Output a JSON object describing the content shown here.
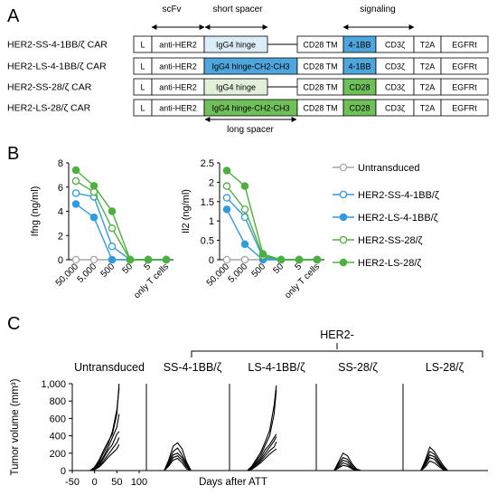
{
  "panels": {
    "a": {
      "letter": "A",
      "header": {
        "scfv": "scFv",
        "short_spacer": "short spacer",
        "signaling": "signaling",
        "long_spacer": "long spacer"
      },
      "constructs": [
        {
          "name": "HER2-SS-4-1BB/ζ CAR",
          "leader": "L",
          "binder": "anti-HER2",
          "spacer": "IgG4 hinge",
          "tm": "CD28 TM",
          "costim": "4-1BB",
          "cd3z": "CD3ζ",
          "t2a": "T2A",
          "egfrt": "EGFRt"
        },
        {
          "name": "HER2-LS-4-1BB/ζ CAR",
          "leader": "L",
          "binder": "anti-HER2",
          "spacer": "IgG4 hinge-CH2-CH3",
          "tm": "CD28 TM",
          "costim": "4-1BB",
          "cd3z": "CD3ζ",
          "t2a": "T2A",
          "egfrt": "EGFRt"
        },
        {
          "name": "HER2-SS-28/ζ CAR",
          "leader": "L",
          "binder": "anti-HER2",
          "spacer": "IgG4 hinge",
          "tm": "CD28 TM",
          "costim": "CD28",
          "cd3z": "CD3ζ",
          "t2a": "T2A",
          "egfrt": "EGFRt"
        },
        {
          "name": "HER2-LS-28/ζ CAR",
          "leader": "L",
          "binder": "anti-HER2",
          "spacer": "IgG4 hinge-CH2-CH3",
          "tm": "CD28 TM",
          "costim": "CD28",
          "cd3z": "CD3ζ",
          "t2a": "T2A",
          "egfrt": "EGFRt"
        }
      ],
      "colors": {
        "ss_4_1bb_spacer": "#dbeef8",
        "ls_4_1bb_spacer": "#4ea6dc",
        "ss_28_spacer": "#e2f0d9",
        "ls_28_spacer": "#70c05a",
        "costim_4_1bb": "#4ea6dc",
        "costim_28": "#70c05a"
      }
    },
    "b_letter": "B",
    "c_letter": "C"
  },
  "chart_data": [
    {
      "type": "line",
      "panel": "B-left",
      "ylabel": "Ifng (ng/ml)",
      "ylim": [
        0,
        8
      ],
      "yticks": [
        "0",
        "2",
        "4",
        "6",
        "8"
      ],
      "categories": [
        "50,000",
        "5,000",
        "500",
        "50",
        "5",
        "only T cells"
      ],
      "series": [
        {
          "name": "Untransduced",
          "color": "#a6a6a6",
          "marker": "open",
          "values": [
            0,
            0,
            0,
            0,
            0,
            0
          ]
        },
        {
          "name": "HER2-SS-4-1BB/ζ",
          "color": "#2f9be0",
          "marker": "open",
          "values": [
            5.5,
            5.2,
            1.1,
            0,
            0,
            0
          ]
        },
        {
          "name": "HER2-LS-4-1BB/ζ",
          "color": "#2f9be0",
          "marker": "filled",
          "values": [
            4.6,
            3.5,
            0,
            0,
            0,
            0
          ]
        },
        {
          "name": "HER2-SS-28/ζ",
          "color": "#4cb13c",
          "marker": "open",
          "values": [
            6.5,
            5.6,
            2.6,
            0,
            0,
            0
          ]
        },
        {
          "name": "HER2-LS-28/ζ",
          "color": "#4cb13c",
          "marker": "filled",
          "values": [
            7.4,
            6.1,
            4.0,
            0,
            0,
            0
          ]
        }
      ]
    },
    {
      "type": "line",
      "panel": "B-right",
      "ylabel": "Il2 (ng/ml)",
      "ylim": [
        0,
        2.5
      ],
      "yticks": [
        "0",
        "0.5",
        "1",
        "1.5",
        "2",
        "2.5"
      ],
      "categories": [
        "50,000",
        "5,000",
        "500",
        "50",
        "5",
        "only T cells"
      ],
      "series": [
        {
          "name": "Untransduced",
          "color": "#a6a6a6",
          "marker": "open",
          "values": [
            0,
            0,
            0,
            0,
            0,
            0
          ]
        },
        {
          "name": "HER2-SS-4-1BB/ζ",
          "color": "#2f9be0",
          "marker": "open",
          "values": [
            1.6,
            1.1,
            0.05,
            0,
            0,
            0
          ]
        },
        {
          "name": "HER2-LS-4-1BB/ζ",
          "color": "#2f9be0",
          "marker": "filled",
          "values": [
            1.3,
            0.4,
            0,
            0,
            0,
            0
          ]
        },
        {
          "name": "HER2-SS-28/ζ",
          "color": "#4cb13c",
          "marker": "open",
          "values": [
            1.9,
            1.3,
            0.1,
            0,
            0,
            0
          ]
        },
        {
          "name": "HER2-LS-28/ζ",
          "color": "#4cb13c",
          "marker": "filled",
          "values": [
            2.3,
            1.9,
            0.15,
            0,
            0,
            0
          ]
        }
      ]
    },
    {
      "type": "line",
      "panel": "C",
      "group_label": "HER2-",
      "ylabel": "Tumor volume (mm³)",
      "xlabel": "Days after ATT",
      "ylim": [
        0,
        1000
      ],
      "yticks": [
        "0",
        "200",
        "400",
        "600",
        "800",
        "1,000"
      ],
      "xlim": [
        -50,
        100
      ],
      "xticks": [
        "-50",
        "0",
        "50",
        "100"
      ],
      "groups": [
        {
          "title": "Untransduced",
          "curves": [
            {
              "x": [
                -10,
                0,
                10,
                20,
                30,
                40,
                50,
                55
              ],
              "y": [
                0,
                40,
                120,
                230,
                330,
                420,
                650,
                1000
              ]
            },
            {
              "x": [
                -10,
                0,
                10,
                20,
                30,
                40,
                50,
                55
              ],
              "y": [
                0,
                30,
                100,
                200,
                300,
                450,
                700,
                950
              ]
            },
            {
              "x": [
                -10,
                0,
                10,
                20,
                30,
                40,
                50,
                55
              ],
              "y": [
                0,
                25,
                80,
                160,
                260,
                380,
                500,
                650
              ]
            },
            {
              "x": [
                -10,
                0,
                10,
                20,
                30,
                40,
                50,
                55
              ],
              "y": [
                0,
                20,
                60,
                140,
                230,
                300,
                420,
                450
              ]
            },
            {
              "x": [
                -10,
                0,
                10,
                20,
                30,
                40,
                50,
                55
              ],
              "y": [
                0,
                15,
                50,
                110,
                180,
                250,
                320,
                380
              ]
            },
            {
              "x": [
                -10,
                0,
                10,
                20,
                30,
                40,
                50,
                55
              ],
              "y": [
                0,
                10,
                40,
                90,
                150,
                200,
                250,
                300
              ]
            }
          ]
        },
        {
          "title": "SS-4-1BB/ζ",
          "curves": [
            {
              "x": [
                -10,
                0,
                10,
                20,
                30,
                40,
                50
              ],
              "y": [
                0,
                120,
                280,
                320,
                250,
                100,
                0
              ]
            },
            {
              "x": [
                -10,
                0,
                10,
                20,
                30,
                40,
                50
              ],
              "y": [
                0,
                100,
                220,
                260,
                180,
                80,
                0
              ]
            },
            {
              "x": [
                -10,
                0,
                10,
                20,
                30,
                40,
                50
              ],
              "y": [
                0,
                80,
                180,
                200,
                150,
                60,
                0
              ]
            },
            {
              "x": [
                -10,
                0,
                10,
                20,
                30,
                40,
                50
              ],
              "y": [
                0,
                60,
                150,
                170,
                120,
                40,
                0
              ]
            },
            {
              "x": [
                -10,
                0,
                10,
                20,
                30,
                40,
                50
              ],
              "y": [
                0,
                50,
                120,
                140,
                90,
                20,
                0
              ]
            }
          ]
        },
        {
          "title": "LS-4-1BB/ζ",
          "curves": [
            {
              "x": [
                -10,
                0,
                10,
                20,
                30,
                40,
                50,
                55
              ],
              "y": [
                0,
                50,
                130,
                210,
                330,
                460,
                750,
                980
              ]
            },
            {
              "x": [
                -10,
                0,
                10,
                20,
                30,
                40,
                50,
                55
              ],
              "y": [
                0,
                40,
                110,
                180,
                290,
                400,
                650,
                930
              ]
            },
            {
              "x": [
                -10,
                0,
                10,
                20,
                30,
                40,
                50,
                55
              ],
              "y": [
                0,
                30,
                90,
                150,
                240,
                300,
                380,
                420
              ]
            },
            {
              "x": [
                -10,
                0,
                10,
                20,
                30,
                40,
                50,
                55
              ],
              "y": [
                0,
                25,
                75,
                130,
                200,
                270,
                340,
                390
              ]
            },
            {
              "x": [
                -10,
                0,
                10,
                20,
                30,
                40,
                50,
                55
              ],
              "y": [
                0,
                20,
                60,
                110,
                170,
                230,
                270,
                330
              ]
            },
            {
              "x": [
                -10,
                0,
                10,
                20,
                30,
                40,
                50,
                55
              ],
              "y": [
                0,
                15,
                50,
                90,
                140,
                190,
                230,
                250
              ]
            }
          ]
        },
        {
          "title": "SS-28/ζ",
          "curves": [
            {
              "x": [
                -10,
                0,
                10,
                20,
                30,
                40,
                50
              ],
              "y": [
                0,
                100,
                200,
                170,
                80,
                20,
                0
              ]
            },
            {
              "x": [
                -10,
                0,
                10,
                20,
                30,
                40,
                50
              ],
              "y": [
                0,
                80,
                150,
                130,
                60,
                10,
                0
              ]
            },
            {
              "x": [
                -10,
                0,
                10,
                20,
                30,
                40,
                50
              ],
              "y": [
                0,
                60,
                120,
                100,
                40,
                0,
                0
              ]
            },
            {
              "x": [
                -10,
                0,
                10,
                20,
                30,
                40,
                50
              ],
              "y": [
                0,
                40,
                90,
                70,
                30,
                0,
                0
              ]
            },
            {
              "x": [
                -10,
                0,
                10,
                20,
                30,
                40,
                50
              ],
              "y": [
                0,
                30,
                60,
                50,
                20,
                0,
                0
              ]
            }
          ]
        },
        {
          "title": "LS-28/ζ",
          "curves": [
            {
              "x": [
                -10,
                0,
                10,
                20,
                30,
                40,
                50
              ],
              "y": [
                0,
                120,
                270,
                220,
                140,
                60,
                0
              ]
            },
            {
              "x": [
                -10,
                0,
                10,
                20,
                30,
                40,
                50
              ],
              "y": [
                0,
                100,
                220,
                190,
                110,
                40,
                0
              ]
            },
            {
              "x": [
                -10,
                0,
                10,
                20,
                30,
                40,
                50
              ],
              "y": [
                0,
                80,
                180,
                160,
                90,
                30,
                0
              ]
            },
            {
              "x": [
                -10,
                0,
                10,
                20,
                30,
                40,
                50
              ],
              "y": [
                0,
                60,
                150,
                130,
                70,
                20,
                0
              ]
            },
            {
              "x": [
                -10,
                0,
                10,
                20,
                30,
                40,
                50
              ],
              "y": [
                0,
                40,
                110,
                90,
                50,
                10,
                0
              ]
            }
          ]
        }
      ]
    }
  ]
}
